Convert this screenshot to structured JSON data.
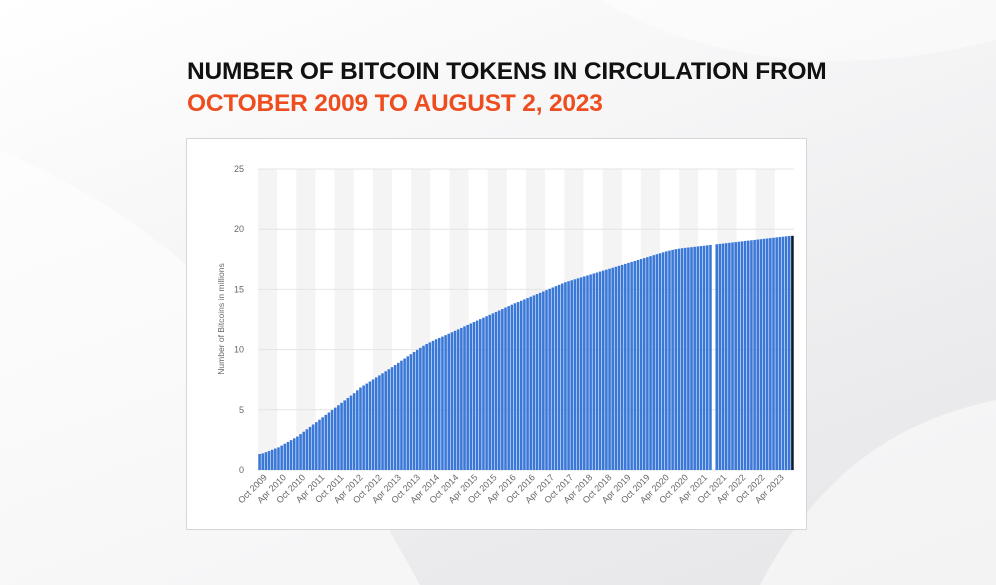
{
  "title": {
    "line1": "NUMBER OF BITCOIN TOKENS IN CIRCULATION FROM",
    "line2": "OCTOBER 2009 TO AUGUST 2, 2023"
  },
  "colors": {
    "bar": "#3a78d8",
    "last_bar": "#101a2e",
    "title_dark": "#111111",
    "title_accent": "#ee4d1f"
  },
  "chart_data": {
    "type": "bar",
    "ylabel": "Number of Bitcoins in millions",
    "xlabel": "",
    "ylim": [
      0,
      25
    ],
    "yticks": [
      0,
      5,
      10,
      15,
      20,
      25
    ],
    "grid": true,
    "xtick_labels": [
      "Oct 2009",
      "Apr 2010",
      "Oct 2010",
      "Apr 2011",
      "Oct 2011",
      "Apr 2012",
      "Oct 2012",
      "Apr 2013",
      "Oct 2013",
      "Apr 2014",
      "Oct 2014",
      "Apr 2015",
      "Oct 2015",
      "Apr 2016",
      "Oct 2016",
      "Apr 2017",
      "Oct 2017",
      "Apr 2018",
      "Oct 2018",
      "Apr 2019",
      "Oct 2019",
      "Apr 2020",
      "Oct 2020",
      "Apr 2021",
      "Oct 2021",
      "Apr 2022",
      "Oct 2022",
      "Apr 2023"
    ],
    "x_start": "Oct 2009",
    "x_end": "Aug 2, 2023",
    "values": [
      1.33,
      1.38,
      1.48,
      1.58,
      1.68,
      1.78,
      1.88,
      2.03,
      2.18,
      2.33,
      2.48,
      2.63,
      2.78,
      2.98,
      3.18,
      3.38,
      3.58,
      3.78,
      3.98,
      4.18,
      4.38,
      4.58,
      4.78,
      4.98,
      5.18,
      5.38,
      5.58,
      5.78,
      5.98,
      6.18,
      6.38,
      6.62,
      6.85,
      7.02,
      7.18,
      7.35,
      7.52,
      7.69,
      7.86,
      8.03,
      8.2,
      8.37,
      8.54,
      8.72,
      8.9,
      9.08,
      9.26,
      9.44,
      9.62,
      9.8,
      9.98,
      10.15,
      10.32,
      10.47,
      10.6,
      10.73,
      10.86,
      10.97,
      11.08,
      11.2,
      11.32,
      11.44,
      11.56,
      11.68,
      11.8,
      11.93,
      12.05,
      12.17,
      12.29,
      12.41,
      12.53,
      12.65,
      12.77,
      12.89,
      13.01,
      13.13,
      13.25,
      13.37,
      13.49,
      13.61,
      13.73,
      13.85,
      13.95,
      14.06,
      14.17,
      14.28,
      14.39,
      14.5,
      14.61,
      14.72,
      14.83,
      14.94,
      15.05,
      15.16,
      15.27,
      15.38,
      15.49,
      15.6,
      15.68,
      15.76,
      15.84,
      15.92,
      16.0,
      16.08,
      16.16,
      16.24,
      16.32,
      16.4,
      16.48,
      16.56,
      16.64,
      16.72,
      16.8,
      16.88,
      16.96,
      17.04,
      17.12,
      17.2,
      17.28,
      17.36,
      17.44,
      17.52,
      17.6,
      17.68,
      17.76,
      17.84,
      17.92,
      18.0,
      18.08,
      18.16,
      18.22,
      18.28,
      18.34,
      18.38,
      18.42,
      18.45,
      18.48,
      18.51,
      18.54,
      18.57,
      18.6,
      18.63,
      18.66,
      18.69,
      18.72,
      18.75,
      18.78,
      18.81,
      18.84,
      18.87,
      18.9,
      18.93,
      18.96,
      18.99,
      19.02,
      19.05,
      19.08,
      19.11,
      19.14,
      19.17,
      19.2,
      19.23,
      19.26,
      19.29,
      19.32,
      19.35,
      19.38,
      19.41,
      19.44,
      19.45
    ],
    "missing_index": 144,
    "highlight_last": true
  }
}
